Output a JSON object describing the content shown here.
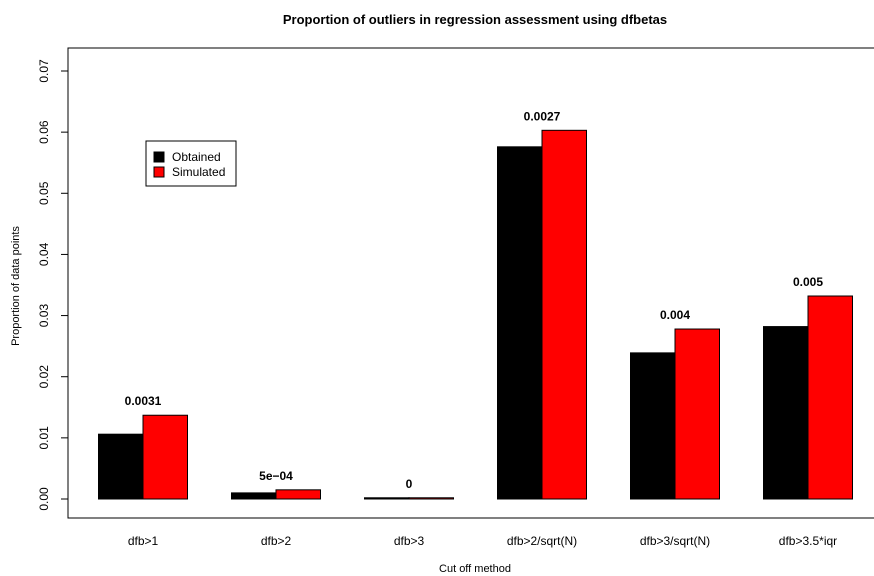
{
  "chart_data": {
    "type": "bar",
    "title": "Proportion of outliers in regression assessment using dfbetas",
    "xlabel": "Cut off method",
    "ylabel": "Proportion of data points",
    "ylim": [
      0,
      0.07
    ],
    "yticks": [
      "0.00",
      "0.01",
      "0.02",
      "0.03",
      "0.04",
      "0.05",
      "0.06",
      "0.07"
    ],
    "categories": [
      "dfb>1",
      "dfb>2",
      "dfb>3",
      "dfb>2/sqrt(N)",
      "dfb>3/sqrt(N)",
      "dfb>3.5*iqr"
    ],
    "series": [
      {
        "name": "Obtained",
        "color": "#000000",
        "values": [
          0.0106,
          0.001,
          0.0002,
          0.0576,
          0.0239,
          0.0282
        ]
      },
      {
        "name": "Simulated",
        "color": "#ff0000",
        "values": [
          0.0137,
          0.0015,
          0.0002,
          0.0603,
          0.0278,
          0.0332
        ]
      }
    ],
    "annotations": [
      "0.0031",
      "5e−04",
      "0",
      "0.0027",
      "0.004",
      "0.005"
    ],
    "legend_position": "top-left",
    "grid": false
  }
}
